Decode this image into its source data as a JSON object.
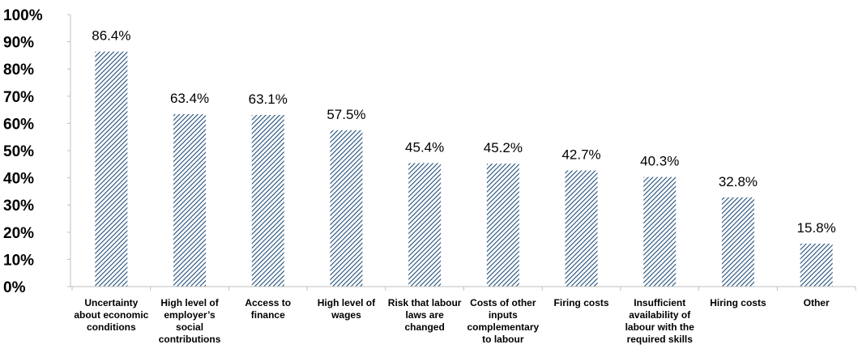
{
  "chart_data": {
    "type": "bar",
    "title": "",
    "xlabel": "",
    "ylabel": "",
    "ylim": [
      0,
      100
    ],
    "y_tick_labels": [
      "0%",
      "10%",
      "20%",
      "30%",
      "40%",
      "50%",
      "60%",
      "70%",
      "80%",
      "90%",
      "100%"
    ],
    "categories": [
      "Uncertainty about economic conditions",
      "High level of employer’s social contributions",
      "Access to finance",
      "High level of wages",
      "Risk that labour laws are changed",
      "Costs of other inputs complementary to labour",
      "Firing costs",
      "Insufficient availability of labour with the required skills",
      "Hiring costs",
      "Other"
    ],
    "category_lines": [
      [
        "Uncertainty",
        "about economic",
        "conditions"
      ],
      [
        "High level of",
        "employer’s",
        "social",
        "contributions"
      ],
      [
        "Access to",
        "finance"
      ],
      [
        "High level of",
        "wages"
      ],
      [
        "Risk that labour",
        "laws are",
        "changed"
      ],
      [
        "Costs of other",
        "inputs",
        "complementary",
        "to labour"
      ],
      [
        "Firing costs"
      ],
      [
        "Insufficient",
        "availability of",
        "labour with the",
        "required skills"
      ],
      [
        "Hiring costs"
      ],
      [
        "Other"
      ]
    ],
    "values": [
      86.4,
      63.4,
      63.1,
      57.5,
      45.4,
      45.2,
      42.7,
      40.3,
      32.8,
      15.8
    ],
    "data_labels": [
      "86.4%",
      "63.4%",
      "63.1%",
      "57.5%",
      "45.4%",
      "45.2%",
      "42.7%",
      "40.3%",
      "32.8%",
      "15.8%"
    ],
    "grid": false,
    "legend": "none",
    "bar_color": "#1f4e79",
    "bar_pattern": "diagonal-hatch"
  }
}
